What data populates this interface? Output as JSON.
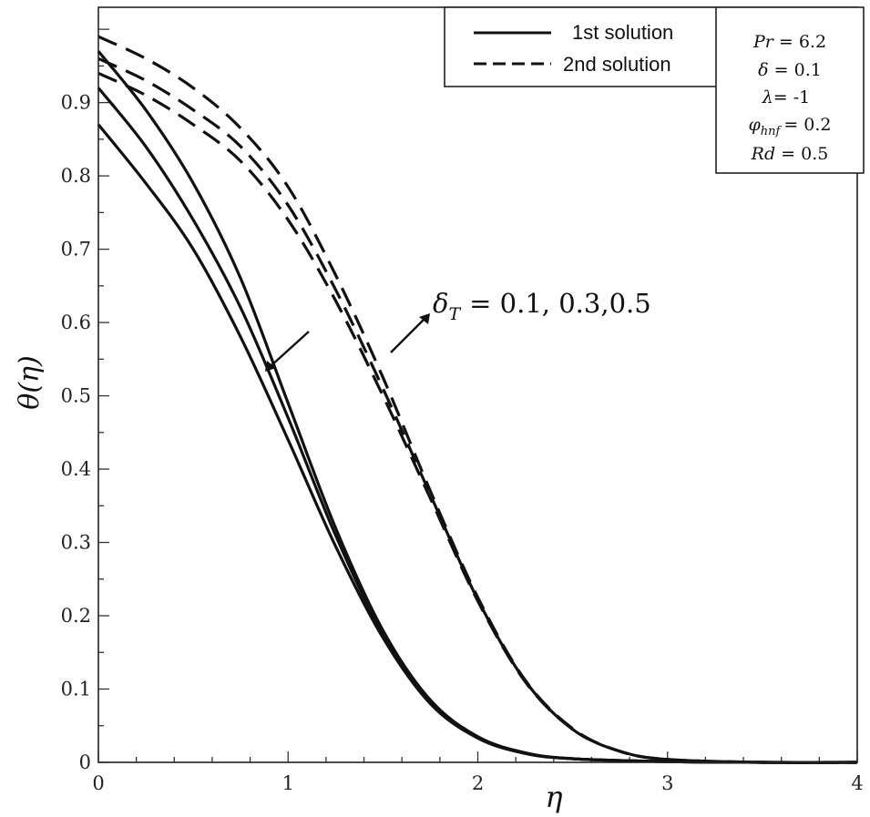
{
  "chart_data": {
    "type": "line",
    "title": "",
    "xlabel": "η",
    "ylabel": "θ(η)",
    "xlim": [
      0,
      4
    ],
    "ylim": [
      0,
      1
    ],
    "xticks": [
      "0",
      "1",
      "2",
      "3",
      "4"
    ],
    "yticks": [
      "0",
      "0.1",
      "0.2",
      "0.3",
      "0.4",
      "0.5",
      "0.6",
      "0.7",
      "0.8",
      "0.9"
    ],
    "legend": {
      "position": "top-right",
      "entries": [
        {
          "label": "1st solution",
          "style": "solid"
        },
        {
          "label": "2nd solution",
          "style": "dashed"
        }
      ]
    },
    "parameters": [
      {
        "symbol": "Pr",
        "text": "= 6.2"
      },
      {
        "symbol": "δ",
        "text": "= 0.1"
      },
      {
        "symbol": "λ",
        "text": "= -1"
      },
      {
        "symbol": "φ",
        "sub": "hnf",
        "text": "= 0.2"
      },
      {
        "symbol": "Rd",
        "text": "= 0.5"
      }
    ],
    "annotation": {
      "symbol": "δ",
      "sub": "T",
      "text": "= 0.1, 0.3,0.5"
    },
    "series": [
      {
        "name": "1st solution, δT = 0.1",
        "style": "solid",
        "x": [
          0,
          0.25,
          0.5,
          0.75,
          1.0,
          1.25,
          1.5,
          1.75,
          2.0,
          2.25,
          2.5,
          3.0,
          3.5,
          4.0
        ],
        "y": [
          0.97,
          0.89,
          0.79,
          0.66,
          0.49,
          0.32,
          0.18,
          0.085,
          0.035,
          0.013,
          0.005,
          0.001,
          0.0,
          0.0
        ]
      },
      {
        "name": "1st solution, δT = 0.3",
        "style": "solid",
        "x": [
          0,
          0.25,
          0.5,
          0.75,
          1.0,
          1.25,
          1.5,
          1.75,
          2.0,
          2.25,
          2.5,
          3.0,
          3.5,
          4.0
        ],
        "y": [
          0.92,
          0.84,
          0.74,
          0.62,
          0.47,
          0.31,
          0.175,
          0.083,
          0.034,
          0.013,
          0.005,
          0.001,
          0.0,
          0.0
        ]
      },
      {
        "name": "1st solution, δT = 0.5",
        "style": "solid",
        "x": [
          0,
          0.25,
          0.5,
          0.75,
          1.0,
          1.25,
          1.5,
          1.75,
          2.0,
          2.25,
          2.5,
          3.0,
          3.5,
          4.0
        ],
        "y": [
          0.87,
          0.79,
          0.7,
          0.58,
          0.44,
          0.295,
          0.17,
          0.08,
          0.033,
          0.012,
          0.005,
          0.001,
          0.0,
          0.0
        ]
      },
      {
        "name": "2nd solution, δT = 0.1",
        "style": "dashed",
        "x": [
          0,
          0.25,
          0.5,
          0.75,
          1.0,
          1.25,
          1.5,
          1.75,
          2.0,
          2.25,
          2.5,
          2.75,
          3.0,
          3.5,
          4.0
        ],
        "y": [
          0.94,
          0.91,
          0.87,
          0.82,
          0.74,
          0.63,
          0.5,
          0.36,
          0.22,
          0.11,
          0.045,
          0.015,
          0.004,
          0.0,
          0.0
        ]
      },
      {
        "name": "2nd solution, δT = 0.3",
        "style": "dashed",
        "x": [
          0,
          0.25,
          0.5,
          0.75,
          1.0,
          1.25,
          1.5,
          1.75,
          2.0,
          2.25,
          2.5,
          2.75,
          3.0,
          3.5,
          4.0
        ],
        "y": [
          0.96,
          0.93,
          0.89,
          0.84,
          0.76,
          0.645,
          0.51,
          0.365,
          0.222,
          0.111,
          0.045,
          0.015,
          0.004,
          0.0,
          0.0
        ]
      },
      {
        "name": "2nd solution, δT = 0.5",
        "style": "dashed",
        "x": [
          0,
          0.25,
          0.5,
          0.75,
          1.0,
          1.25,
          1.5,
          1.75,
          2.0,
          2.25,
          2.5,
          2.75,
          3.0,
          3.5,
          4.0
        ],
        "y": [
          0.99,
          0.96,
          0.92,
          0.865,
          0.785,
          0.665,
          0.525,
          0.37,
          0.225,
          0.112,
          0.046,
          0.015,
          0.004,
          0.0,
          0.0
        ]
      }
    ]
  }
}
